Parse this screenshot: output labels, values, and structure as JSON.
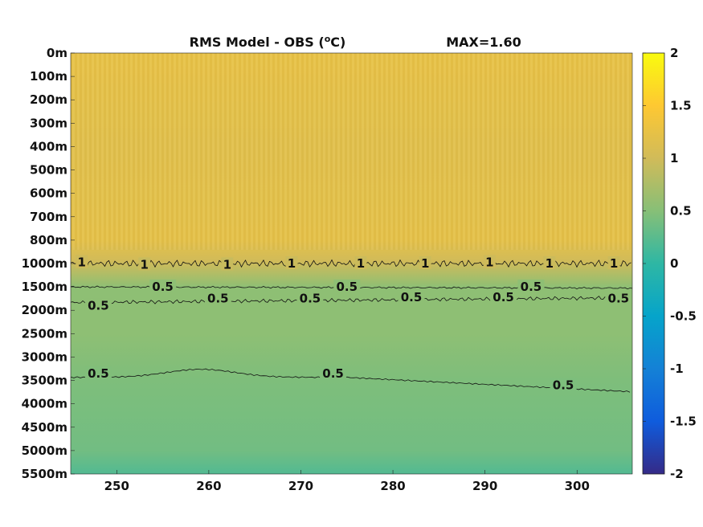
{
  "chart_data": {
    "type": "heatmap",
    "title": "RMS Model - OBS (°C)",
    "title_parts": {
      "main": "RMS Model - OBS (",
      "sup": "o",
      "end": "C)"
    },
    "max_label": "MAX=1.60",
    "xlim": [
      245,
      306
    ],
    "x_ticks": [
      250,
      260,
      270,
      280,
      290,
      300
    ],
    "y_tick_labels": [
      "0m",
      "100m",
      "200m",
      "300m",
      "400m",
      "500m",
      "600m",
      "700m",
      "800m",
      "1000m",
      "1500m",
      "2000m",
      "2500m",
      "3000m",
      "3500m",
      "4000m",
      "4500m",
      "5000m",
      "5500m"
    ],
    "depth_profile": [
      {
        "depth_index": 0,
        "value": 1.25
      },
      {
        "depth_index": 4,
        "value": 1.18
      },
      {
        "depth_index": 8,
        "value": 1.22
      },
      {
        "depth_index": 8.9,
        "value": 1.0
      },
      {
        "depth_index": 10,
        "value": 0.55
      },
      {
        "depth_index": 12,
        "value": 0.55
      },
      {
        "depth_index": 14,
        "value": 0.45
      },
      {
        "depth_index": 17,
        "value": 0.38
      },
      {
        "depth_index": 18,
        "value": 0.2
      }
    ],
    "colorbar": {
      "colormap": "parula",
      "clim": [
        -2,
        2
      ],
      "tick_labels": [
        "2",
        "1.5",
        "1",
        "0.5",
        "0",
        "-0.5",
        "-1",
        "-1.5",
        "-2"
      ],
      "colors": [
        "#352a87",
        "#0f5cdd",
        "#1481d6",
        "#06a4ca",
        "#2eb7a4",
        "#87bf77",
        "#d1bb59",
        "#fec832",
        "#f9fb0e"
      ]
    },
    "contour_labels": [
      {
        "text": "1",
        "x": 246.2,
        "depth_index": 8.95
      },
      {
        "text": "1",
        "x": 253,
        "depth_index": 9.05
      },
      {
        "text": "1",
        "x": 262,
        "depth_index": 9.05
      },
      {
        "text": "1",
        "x": 269,
        "depth_index": 9.0
      },
      {
        "text": "1",
        "x": 276.5,
        "depth_index": 9.0
      },
      {
        "text": "1",
        "x": 283.5,
        "depth_index": 9.0
      },
      {
        "text": "1",
        "x": 290.5,
        "depth_index": 8.95
      },
      {
        "text": "1",
        "x": 297,
        "depth_index": 9.0
      },
      {
        "text": "1",
        "x": 304,
        "depth_index": 9.0
      },
      {
        "text": "0.5",
        "x": 255,
        "depth_index": 10.0
      },
      {
        "text": "0.5",
        "x": 275,
        "depth_index": 10.0
      },
      {
        "text": "0.5",
        "x": 295,
        "depth_index": 10.0
      },
      {
        "text": "0.5",
        "x": 248,
        "depth_index": 10.8
      },
      {
        "text": "0.5",
        "x": 261,
        "depth_index": 10.5
      },
      {
        "text": "0.5",
        "x": 271,
        "depth_index": 10.5
      },
      {
        "text": "0.5",
        "x": 282,
        "depth_index": 10.45
      },
      {
        "text": "0.5",
        "x": 292,
        "depth_index": 10.45
      },
      {
        "text": "0.5",
        "x": 304.5,
        "depth_index": 10.5
      },
      {
        "text": "0.5",
        "x": 248,
        "depth_index": 13.7
      },
      {
        "text": "0.5",
        "x": 273.5,
        "depth_index": 13.7
      },
      {
        "text": "0.5",
        "x": 298.5,
        "depth_index": 14.2
      }
    ]
  }
}
